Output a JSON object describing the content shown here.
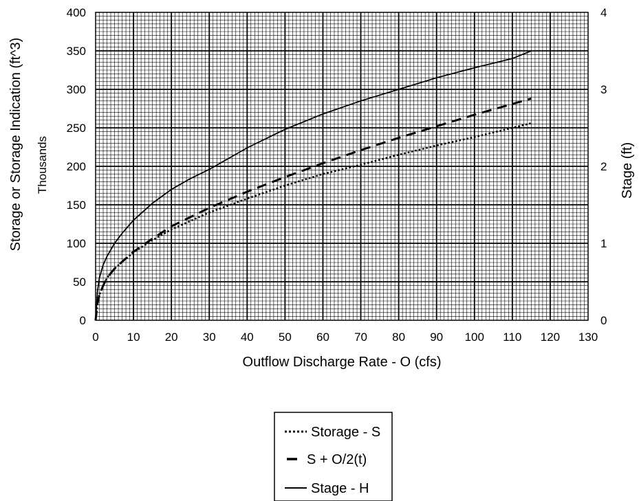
{
  "chart_data": {
    "type": "line",
    "xlabel": "Outflow Discharge Rate - O  (cfs)",
    "ylabel_left": "Storage or Storage Indication (ft^3)",
    "ylabel_left_sub": "Thousands",
    "ylabel_right": "Stage (ft)",
    "xlim": [
      0,
      130
    ],
    "ylim_left": [
      0,
      400
    ],
    "ylim_right": [
      0,
      4
    ],
    "x_ticks": [
      0,
      10,
      20,
      30,
      40,
      50,
      60,
      70,
      80,
      90,
      100,
      110,
      120,
      130
    ],
    "y_left_ticks": [
      0,
      50,
      100,
      150,
      200,
      250,
      300,
      350,
      400
    ],
    "y_right_ticks": [
      0,
      1,
      2,
      3,
      4
    ],
    "grid": true,
    "legend_position": "bottom-center",
    "series": [
      {
        "name": "Storage - S",
        "axis": "left",
        "style": "dotted",
        "x": [
          0,
          0.5,
          1,
          2,
          3,
          5,
          7,
          10,
          15,
          20,
          30,
          40,
          50,
          60,
          70,
          80,
          90,
          100,
          110,
          115
        ],
        "y": [
          0,
          22,
          33,
          45,
          55,
          67,
          76,
          88,
          104,
          118,
          140,
          158,
          175,
          190,
          202,
          215,
          227,
          238,
          250,
          256
        ]
      },
      {
        "name": "S + O/2(t)",
        "axis": "left",
        "style": "dashed",
        "x": [
          0,
          0.5,
          1,
          2,
          3,
          5,
          7,
          10,
          15,
          20,
          30,
          40,
          50,
          60,
          70,
          80,
          90,
          100,
          110,
          115
        ],
        "y": [
          0,
          22,
          33,
          45,
          55,
          67,
          76,
          89,
          106,
          122,
          146,
          167,
          186,
          204,
          221,
          237,
          252,
          267,
          281,
          288
        ]
      },
      {
        "name": "Stage - H",
        "axis": "right",
        "style": "solid",
        "x": [
          0,
          0.5,
          1,
          2,
          3,
          5,
          7,
          10,
          15,
          20,
          25,
          30,
          40,
          50,
          60,
          70,
          80,
          90,
          100,
          110,
          115
        ],
        "y": [
          0,
          0.38,
          0.55,
          0.72,
          0.83,
          1.0,
          1.13,
          1.3,
          1.52,
          1.7,
          1.84,
          1.96,
          2.24,
          2.48,
          2.68,
          2.85,
          3.0,
          3.15,
          3.28,
          3.4,
          3.5
        ]
      }
    ]
  }
}
